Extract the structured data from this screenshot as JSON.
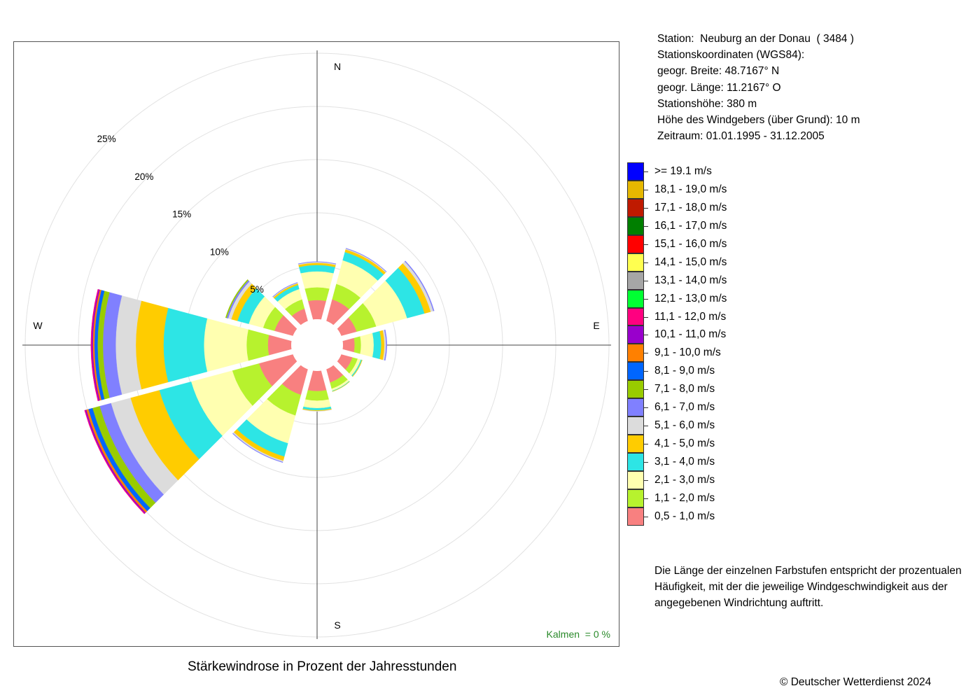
{
  "header": {
    "station": "Station:  Neuburg an der Donau  ( 3484 )",
    "coords_title": "Stationskoordinaten (WGS84):",
    "lat": "geogr. Breite: 48.7167° N",
    "lon": "geogr. Länge: 11.2167° O",
    "height": "Stationshöhe: 380 m",
    "sensor_height": "Höhe des Windgebers (über Grund): 10 m",
    "period": "Zeitraum: 01.01.1995 - 31.12.2005"
  },
  "note": "Die Länge der einzelnen Farbstufen entspricht der prozentualen Häufigkeit, mit der die jeweilige Windgeschwindigkeit aus der angegebenen Windrichtung auftritt.",
  "caption": "Stärkewindrose in Prozent der Jahresstunden",
  "copyright": "© Deutscher Wetterdienst  2024",
  "calms": {
    "label": "Kalmen  =",
    "value": "0 %"
  },
  "chart_data": {
    "type": "wind-rose",
    "title": "Stärkewindrose in Prozent der Jahresstunden",
    "radial_unit": "%",
    "radial_ticks": [
      5,
      10,
      15,
      20,
      25
    ],
    "radial_tick_labels": [
      "5%",
      "10%",
      "15%",
      "20%",
      "25%"
    ],
    "direction_labels": [
      "N",
      "E",
      "S",
      "W"
    ],
    "directions_deg": [
      0,
      30,
      60,
      90,
      120,
      150,
      180,
      210,
      240,
      270,
      300,
      330
    ],
    "speed_classes": [
      {
        "label": "0,5 - 1,0 m/s",
        "color": "#f88080"
      },
      {
        "label": "1,1 - 2,0 m/s",
        "color": "#b7f22e"
      },
      {
        "label": "2,1 - 3,0 m/s",
        "color": "#ffffb0"
      },
      {
        "label": "3,1 - 4,0 m/s",
        "color": "#2de5e5"
      },
      {
        "label": "4,1 - 5,0 m/s",
        "color": "#ffcc00"
      },
      {
        "label": "5,1 - 6,0 m/s",
        "color": "#dcdcdc"
      },
      {
        "label": "6,1 - 7,0 m/s",
        "color": "#8080ff"
      },
      {
        "label": "7,1 - 8,0 m/s",
        "color": "#99cc00"
      },
      {
        "label": "8,1 - 9,0 m/s",
        "color": "#0066ff"
      },
      {
        "label": "9,1 - 10,0 m/s",
        "color": "#ff8000"
      },
      {
        "label": "10,1 - 11,0 m/s",
        "color": "#9900cc"
      },
      {
        "label": "11,1 - 12,0 m/s",
        "color": "#ff0080"
      },
      {
        "label": "12,1 - 13,0 m/s",
        "color": "#00ff33"
      },
      {
        "label": "13,1 - 14,0 m/s",
        "color": "#a6a6a6"
      },
      {
        "label": "14,1 - 15,0 m/s",
        "color": "#ffff50"
      },
      {
        "label": "15,1 - 16,0 m/s",
        "color": "#ff0000"
      },
      {
        "label": "16,1 - 17,0 m/s",
        "color": "#007f00"
      },
      {
        "label": "17,1 - 18,0 m/s",
        "color": "#bf1a00"
      },
      {
        "label": "18,1 - 19,0 m/s",
        "color": "#e6b800"
      },
      {
        "label": ">= 19.1 m/s",
        "color": "#0000ff"
      }
    ],
    "series": [
      {
        "dir_deg": 0,
        "values": [
          1.8,
          1.2,
          1.5,
          0.6,
          0.2,
          0.08,
          0.04
        ]
      },
      {
        "dir_deg": 30,
        "values": [
          2.1,
          1.5,
          2.3,
          0.8,
          0.25,
          0.08,
          0.04
        ]
      },
      {
        "dir_deg": 60,
        "values": [
          1.5,
          1.9,
          3.0,
          1.7,
          0.6,
          0.25,
          0.08
        ]
      },
      {
        "dir_deg": 90,
        "values": [
          1.1,
          0.6,
          1.2,
          0.7,
          0.3,
          0.15,
          0.08
        ]
      },
      {
        "dir_deg": 120,
        "values": [
          1.1,
          0.5,
          0.3,
          0.1,
          0.04
        ]
      },
      {
        "dir_deg": 150,
        "values": [
          1.3,
          0.6,
          0.2,
          0.05,
          0.02
        ]
      },
      {
        "dir_deg": 180,
        "values": [
          1.9,
          0.9,
          0.7,
          0.2,
          0.07,
          0.03
        ]
      },
      {
        "dir_deg": 210,
        "values": [
          2.5,
          2.0,
          2.7,
          1.3,
          0.4,
          0.12,
          0.05
        ]
      },
      {
        "dir_deg": 240,
        "values": [
          3.3,
          2.6,
          4.0,
          3.1,
          2.8,
          1.9,
          1.1,
          0.7,
          0.4,
          0.2,
          0.12,
          0.05
        ]
      },
      {
        "dir_deg": 270,
        "values": [
          2.2,
          2.0,
          4.0,
          3.8,
          2.6,
          1.9,
          1.2,
          0.5,
          0.3,
          0.15,
          0.12,
          0.06
        ]
      },
      {
        "dir_deg": 300,
        "values": [
          1.8,
          1.1,
          1.4,
          1.1,
          0.6,
          0.3,
          0.15,
          0.1
        ]
      },
      {
        "dir_deg": 330,
        "values": [
          1.2,
          0.9,
          1.0,
          0.4,
          0.15,
          0.06,
          0.04
        ]
      }
    ]
  }
}
